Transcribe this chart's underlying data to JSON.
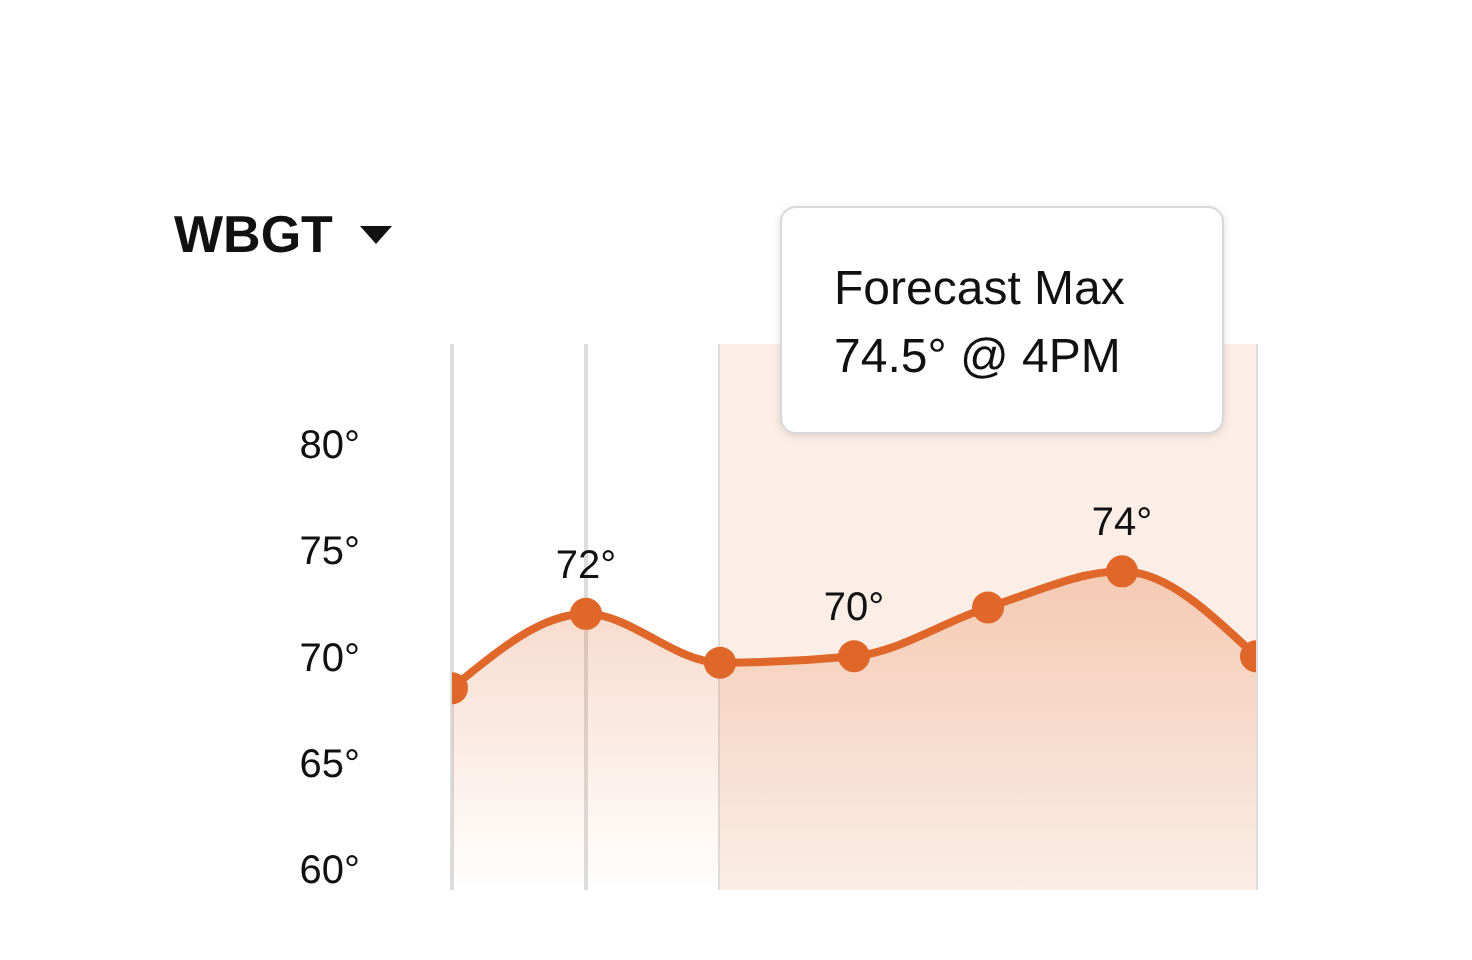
{
  "chart_data": {
    "type": "area",
    "title": "WBGT",
    "categories": [
      null,
      null,
      null,
      null,
      null,
      null,
      null
    ],
    "series": [
      {
        "color": "#e0672a",
        "values": [
          68.5,
          72,
          69.7,
          70,
          72.3,
          74,
          70.0
        ],
        "value_labels": [
          null,
          "72°",
          null,
          "70°",
          null,
          "74°",
          null
        ]
      }
    ],
    "ylim": [
      59,
      84.7
    ],
    "yticks": [
      {
        "value": 60,
        "label": "60°"
      },
      {
        "value": 65,
        "label": "65°"
      },
      {
        "value": 70,
        "label": "70°"
      },
      {
        "value": 75,
        "label": "75°"
      },
      {
        "value": 80,
        "label": "80°"
      }
    ],
    "annotations": [
      "Forecast Max\n74.5° @ 4PM"
    ],
    "grid": "x",
    "marker": "circle",
    "line_style": "solid"
  }
}
